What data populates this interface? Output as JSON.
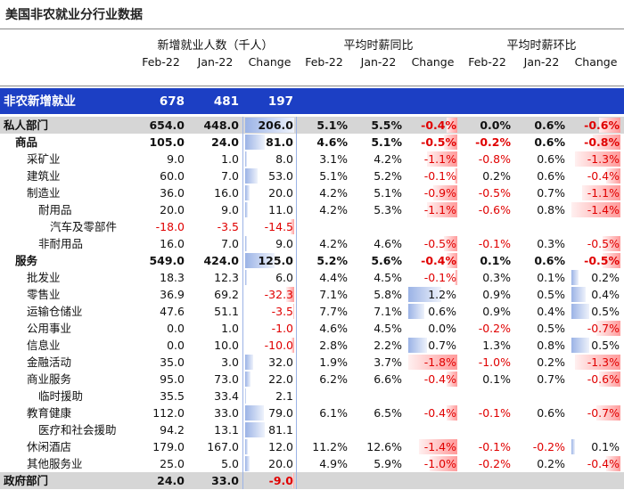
{
  "header": {
    "title": "美国非农就业分行业数据"
  },
  "table": {
    "groups": [
      "新增就业人数（千人）",
      "平均时薪同比",
      "平均时薪环比"
    ],
    "subheaders": [
      "Feb-22",
      "Jan-22",
      "Change"
    ],
    "rows": [
      {
        "label": "非农新增就业",
        "cells": [
          "678",
          "481",
          "197"
        ]
      },
      {
        "label": "私人部门",
        "cells": [
          "654.0",
          "448.0",
          "206.0",
          "5.1%",
          "5.5%",
          "-0.4%",
          "0.0%",
          "0.6%",
          "-0.6%"
        ]
      },
      {
        "label": "商品",
        "cells": [
          "105.0",
          "24.0",
          "81.0",
          "4.6%",
          "5.1%",
          "-0.5%",
          "-0.2%",
          "0.6%",
          "-0.8%"
        ]
      },
      {
        "label": "采矿业",
        "cells": [
          "9.0",
          "1.0",
          "8.0",
          "3.1%",
          "4.2%",
          "-1.1%",
          "-0.8%",
          "0.6%",
          "-1.3%"
        ]
      },
      {
        "label": "建筑业",
        "cells": [
          "60.0",
          "7.0",
          "53.0",
          "5.1%",
          "5.2%",
          "-0.1%",
          "0.2%",
          "0.6%",
          "-0.4%"
        ]
      },
      {
        "label": "制造业",
        "cells": [
          "36.0",
          "16.0",
          "20.0",
          "4.2%",
          "5.1%",
          "-0.9%",
          "-0.5%",
          "0.7%",
          "-1.1%"
        ]
      },
      {
        "label": "耐用品",
        "cells": [
          "20.0",
          "9.0",
          "11.0",
          "4.2%",
          "5.3%",
          "-1.1%",
          "-0.6%",
          "0.8%",
          "-1.4%"
        ]
      },
      {
        "label": "汽车及零部件",
        "cells": [
          "-18.0",
          "-3.5",
          "-14.5"
        ]
      },
      {
        "label": "非耐用品",
        "cells": [
          "16.0",
          "7.0",
          "9.0",
          "4.2%",
          "4.6%",
          "-0.5%",
          "-0.1%",
          "0.3%",
          "-0.5%"
        ]
      },
      {
        "label": "服务",
        "cells": [
          "549.0",
          "424.0",
          "125.0",
          "5.2%",
          "5.6%",
          "-0.4%",
          "0.1%",
          "0.6%",
          "-0.5%"
        ]
      },
      {
        "label": "批发业",
        "cells": [
          "18.3",
          "12.3",
          "6.0",
          "4.4%",
          "4.5%",
          "-0.1%",
          "0.3%",
          "0.1%",
          "0.2%"
        ]
      },
      {
        "label": "零售业",
        "cells": [
          "36.9",
          "69.2",
          "-32.3",
          "7.1%",
          "5.8%",
          "1.2%",
          "0.9%",
          "0.5%",
          "0.4%"
        ]
      },
      {
        "label": "运输仓储业",
        "cells": [
          "47.6",
          "51.1",
          "-3.5",
          "7.7%",
          "7.1%",
          "0.6%",
          "0.9%",
          "0.4%",
          "0.5%"
        ]
      },
      {
        "label": "公用事业",
        "cells": [
          "0.0",
          "1.0",
          "-1.0",
          "4.6%",
          "4.5%",
          "0.0%",
          "-0.2%",
          "0.5%",
          "-0.7%"
        ]
      },
      {
        "label": "信息业",
        "cells": [
          "0.0",
          "10.0",
          "-10.0",
          "2.8%",
          "2.2%",
          "0.7%",
          "1.3%",
          "0.8%",
          "0.5%"
        ]
      },
      {
        "label": "金融活动",
        "cells": [
          "35.0",
          "3.0",
          "32.0",
          "1.9%",
          "3.7%",
          "-1.8%",
          "-1.0%",
          "0.2%",
          "-1.3%"
        ]
      },
      {
        "label": "商业服务",
        "cells": [
          "95.0",
          "73.0",
          "22.0",
          "6.2%",
          "6.6%",
          "-0.4%",
          "0.1%",
          "0.7%",
          "-0.6%"
        ]
      },
      {
        "label": "临时援助",
        "cells": [
          "35.5",
          "33.4",
          "2.1"
        ]
      },
      {
        "label": "教育健康",
        "cells": [
          "112.0",
          "33.0",
          "79.0",
          "6.1%",
          "6.5%",
          "-0.4%",
          "-0.1%",
          "0.6%",
          "-0.7%"
        ]
      },
      {
        "label": "医疗和社会援助",
        "cells": [
          "94.2",
          "13.1",
          "81.1"
        ]
      },
      {
        "label": "休闲酒店",
        "cells": [
          "179.0",
          "167.0",
          "12.0",
          "11.2%",
          "12.6%",
          "-1.4%",
          "-0.1%",
          "-0.2%",
          "0.1%"
        ]
      },
      {
        "label": "其他服务业",
        "cells": [
          "25.0",
          "5.0",
          "20.0",
          "4.9%",
          "5.9%",
          "-1.0%",
          "-0.2%",
          "0.2%",
          "-0.4%"
        ]
      },
      {
        "label": "政府部门",
        "cells": [
          "24.0",
          "33.0",
          "-9.0"
        ]
      }
    ]
  }
}
